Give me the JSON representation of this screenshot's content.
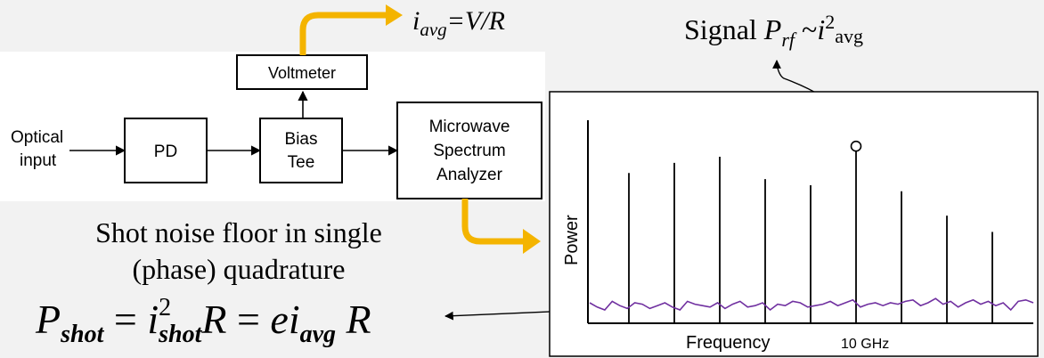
{
  "blocks": {
    "optical_input_line1": "Optical",
    "optical_input_line2": "input",
    "pd": "PD",
    "bias_tee_line1": "Bias",
    "bias_tee_line2": "Tee",
    "voltmeter": "Voltmeter",
    "analyzer_line1": "Microwave",
    "analyzer_line2": "Spectrum",
    "analyzer_line3": "Analyzer"
  },
  "equations": {
    "iavg": {
      "i": "i",
      "sub": "avg",
      "rest": "=V/R"
    },
    "signal": {
      "word": "Signal ",
      "P": "P",
      "sub": "rf",
      "tilde": " ~",
      "i": "i",
      "sup": "2",
      "subscript": "avg"
    },
    "shot": {
      "P": "P",
      "P_sub": "shot",
      "eq1": " = ",
      "i": "i",
      "i_sup": "2",
      "i_sub": "shot",
      "R1": "R",
      "eq2": " = ",
      "e": "e",
      "i2": "i",
      "i2_sub": "avg",
      "R2": " R"
    }
  },
  "caption": {
    "line1": "Shot noise floor in single",
    "line2": "(phase) quadrature"
  },
  "colors": {
    "arrow": "#f4b400",
    "noise": "#7030a0"
  },
  "chart_data": {
    "type": "line",
    "xlabel": "Frequency",
    "ylabel": "Power",
    "tick_label": "10 GHz",
    "spectral_lines": {
      "relative_heights": [
        0.74,
        0.79,
        0.82,
        0.71,
        0.68,
        0.85,
        0.65,
        0.53,
        0.45
      ],
      "marked_index": 5,
      "marked_label": "10 GHz"
    },
    "noise_floor": [
      0.05,
      0.02,
      0.0,
      0.06,
      0.03,
      0.01,
      0.05,
      0.04,
      0.01,
      0.03,
      0.05,
      0.02,
      0.0,
      0.06,
      0.04,
      0.03,
      0.02,
      0.05,
      0.01,
      0.04,
      0.06,
      0.02,
      0.03,
      0.05,
      0.0,
      0.04,
      0.03,
      0.06,
      0.05,
      0.02,
      0.03,
      0.04,
      0.06,
      0.03,
      0.05,
      0.07,
      0.02,
      0.04,
      0.05,
      0.03,
      0.05,
      0.04,
      0.06,
      0.07,
      0.03,
      0.05,
      0.08,
      0.04,
      0.06,
      0.02,
      0.05,
      0.07,
      0.04,
      0.06,
      0.03,
      0.05,
      0.0,
      0.06,
      0.07,
      0.05
    ]
  }
}
